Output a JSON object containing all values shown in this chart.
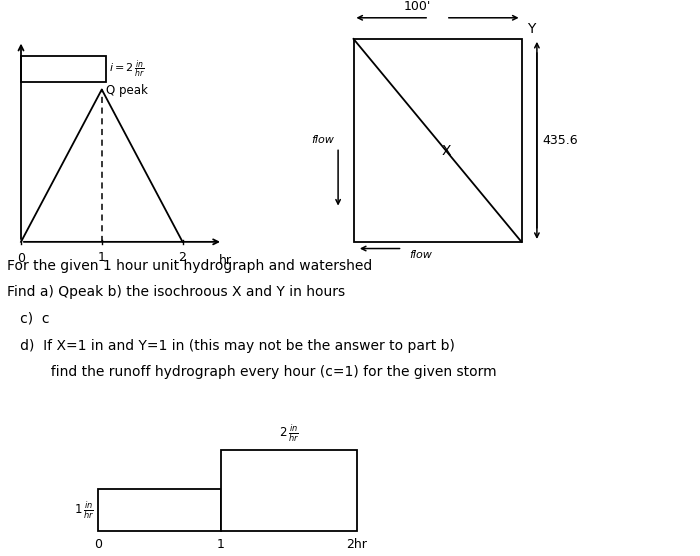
{
  "bg_color": "#ffffff",
  "fig_width": 7.0,
  "fig_height": 5.56,
  "text_lines": [
    "For the given 1 hour unit hydrograph and watershed",
    "Find a) Qpeak b) the isochroous X and Y in hours",
    "   c)  c",
    "   d)  If X=1 in and Y=1 in (this may not be the answer to part b)",
    "          find the runoff hydrograph every hour (c=1) for the given storm"
  ],
  "hydrograph": {
    "hx0": 0.03,
    "hy0": 0.565,
    "hw": 0.3,
    "hh": 0.37,
    "xmax": 2.6,
    "ymax": 1.35
  },
  "watershed": {
    "wx0": 0.505,
    "wy0": 0.565,
    "wx1": 0.745,
    "wy1": 0.93
  },
  "storm": {
    "bx0": 0.14,
    "by0": 0.045,
    "bw1": 0.175,
    "bh1": 0.075,
    "bw2": 0.195,
    "bh2": 0.145
  }
}
